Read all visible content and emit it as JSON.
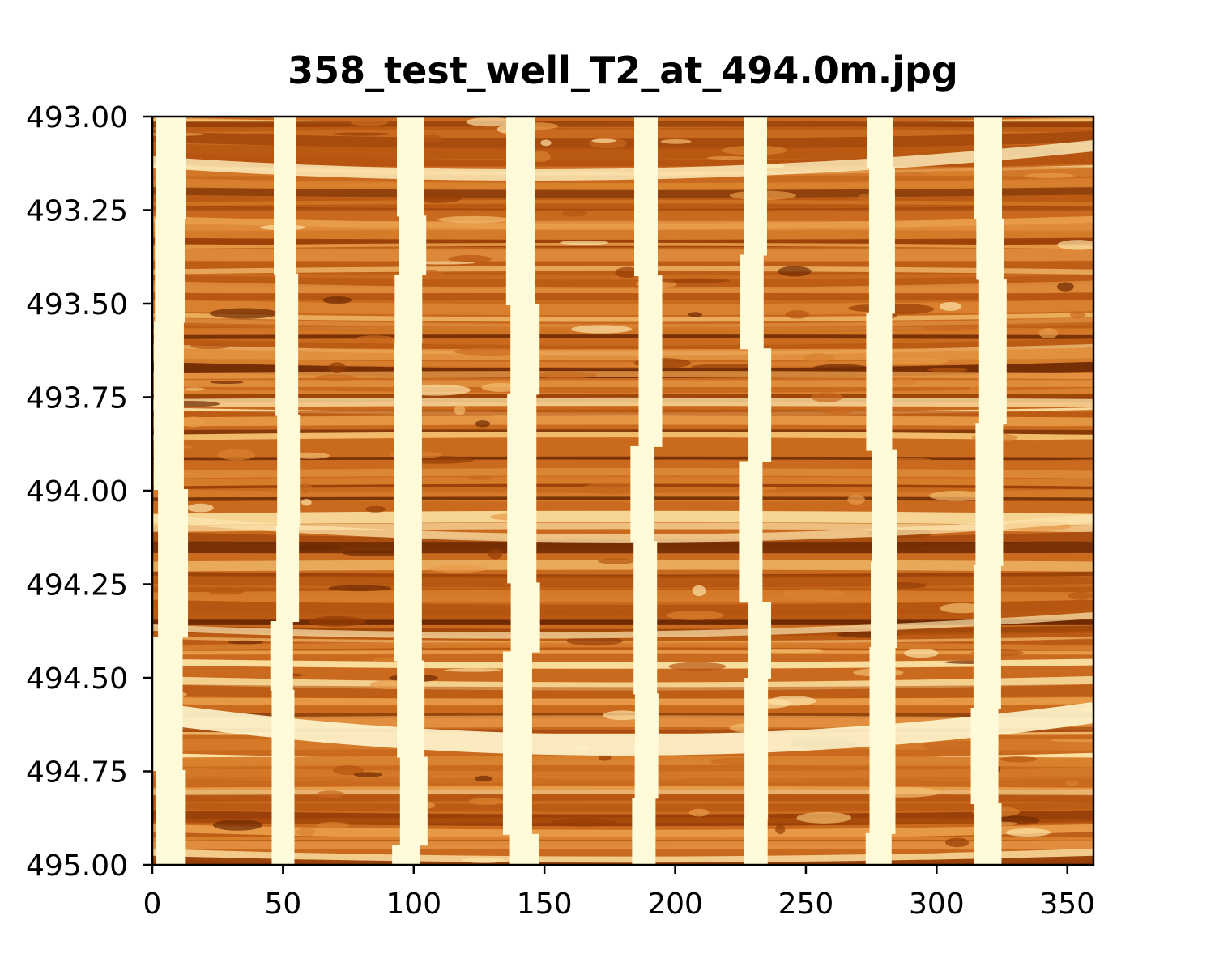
{
  "chart_data": {
    "type": "image",
    "title": "358_test_well_T2_at_494.0m.jpg",
    "xlim": [
      0,
      360
    ],
    "xticks": [
      0,
      50,
      100,
      150,
      200,
      250,
      300,
      350
    ],
    "ylim": [
      493,
      495
    ],
    "invert_y": true,
    "yticks": [
      {
        "value": 493,
        "label": "493.00"
      },
      {
        "value": 493.25,
        "label": "493.25"
      },
      {
        "value": 493.5,
        "label": "493.50"
      },
      {
        "value": 493.75,
        "label": "493.75"
      },
      {
        "value": 494,
        "label": "494.00"
      },
      {
        "value": 494.25,
        "label": "494.25"
      },
      {
        "value": 494.5,
        "label": "494.50"
      },
      {
        "value": 494.75,
        "label": "494.75"
      },
      {
        "value": 495,
        "label": "495.00"
      }
    ]
  }
}
